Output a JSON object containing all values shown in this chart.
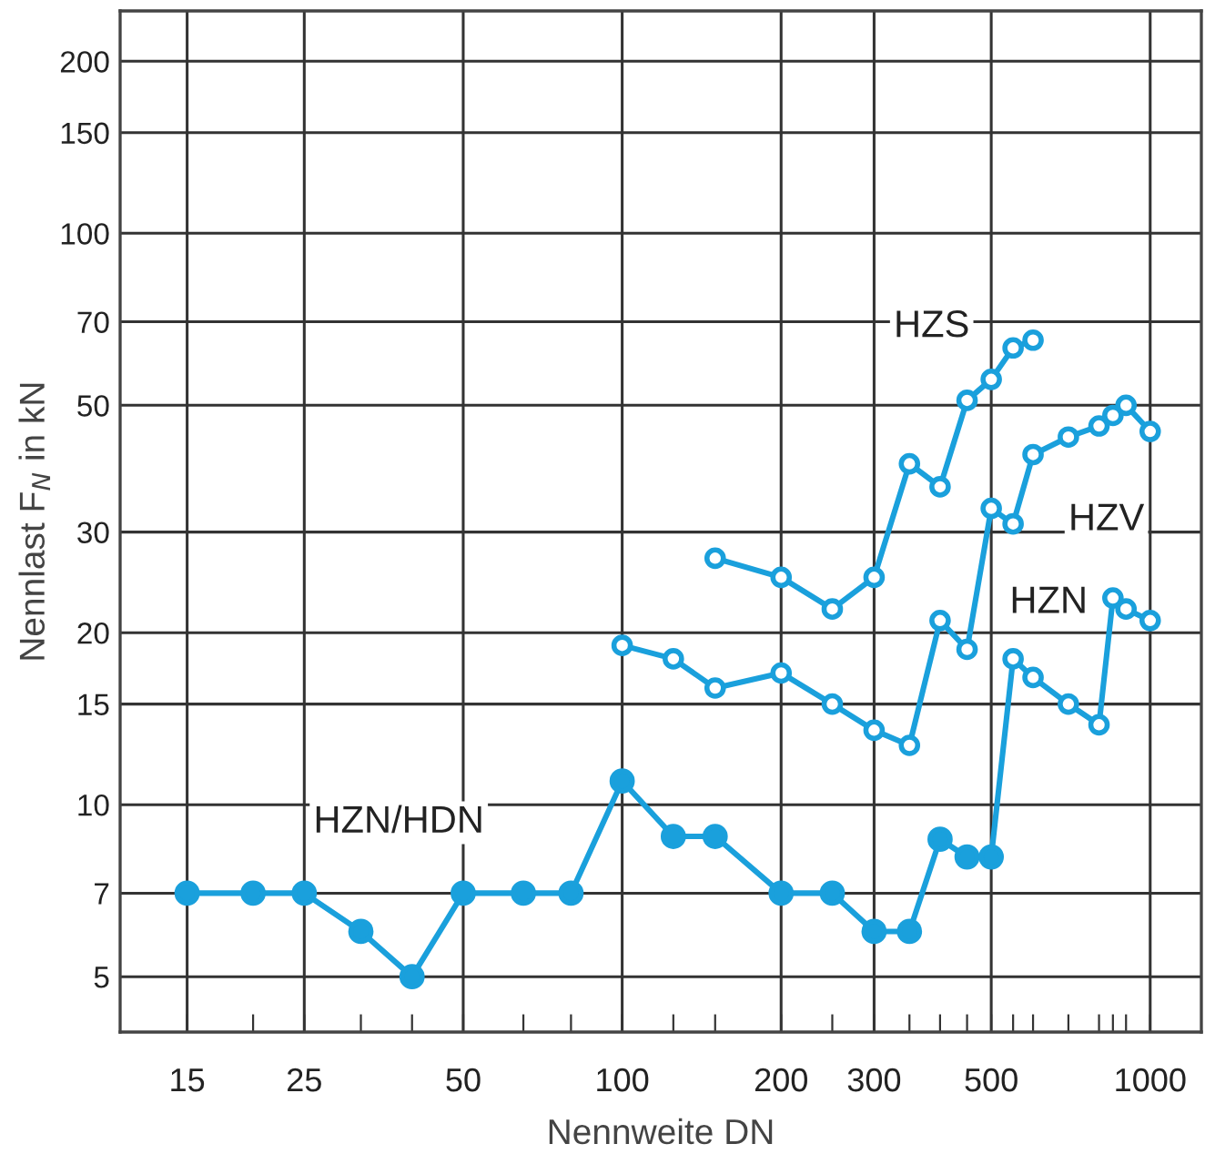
{
  "chart_data": {
    "type": "line",
    "xlabel": "Nennweite DN",
    "ylabel": "Nennlast F$_{N}$ in kN",
    "log": "xy",
    "grid": true,
    "legend": false,
    "marker": "circle",
    "line_style": "solid",
    "xlim": [
      11.2,
      1250
    ],
    "ylim": [
      4,
      245
    ],
    "xticks": [
      15,
      {
        "value": 20,
        "label": null
      },
      25,
      {
        "value": 32,
        "label": null
      },
      {
        "value": 40,
        "label": null
      },
      50,
      {
        "value": 65,
        "label": null
      },
      {
        "value": 80,
        "label": null
      },
      100,
      {
        "value": 125,
        "label": null
      },
      {
        "value": 150,
        "label": null
      },
      200,
      {
        "value": 250,
        "label": null
      },
      300,
      {
        "value": 350,
        "label": null
      },
      {
        "value": 400,
        "label": null
      },
      {
        "value": 450,
        "label": null
      },
      500,
      {
        "value": 550,
        "label": null
      },
      {
        "value": 600,
        "label": null
      },
      {
        "value": 700,
        "label": null
      },
      {
        "value": 800,
        "label": null
      },
      {
        "value": 850,
        "label": null
      },
      {
        "value": 900,
        "label": null
      },
      1000
    ],
    "yticks": [
      5,
      7,
      10,
      15,
      20,
      30,
      50,
      70,
      100,
      150,
      200
    ],
    "series": [
      {
        "name": "HZN/HDN",
        "color": "#1aa0dc",
        "marker": "circle",
        "x": [
          15,
          20,
          25,
          32,
          40,
          50,
          65,
          80,
          100,
          125,
          150,
          200,
          250,
          300,
          350,
          400,
          450,
          500
        ],
        "values": [
          7,
          7,
          7,
          6,
          5,
          7,
          7,
          7,
          11,
          8.8,
          8.8,
          7,
          7,
          6,
          6,
          8.7,
          8.1,
          8.1
        ]
      },
      {
        "name": "HZN",
        "color": "#1aa0dc",
        "x": [
          500,
          550,
          600,
          700,
          800,
          850,
          900,
          1000
        ],
        "values": [
          8.1,
          18,
          16.7,
          15,
          13.8,
          23,
          22,
          21
        ]
      },
      {
        "name": "HZV",
        "color": "#1aa0dc",
        "x": [
          100,
          125,
          150,
          200,
          250,
          300,
          350,
          400,
          450,
          500,
          550,
          600,
          700,
          800,
          850,
          900,
          1000
        ],
        "values": [
          19,
          18,
          16,
          17,
          15,
          13.5,
          12.7,
          21,
          18.7,
          33,
          31,
          41,
          44,
          46,
          48,
          50,
          45
        ]
      },
      {
        "name": "HZS",
        "color": "#1aa0dc",
        "x": [
          150,
          200,
          250,
          300,
          350,
          400,
          450,
          500,
          550,
          600
        ],
        "values": [
          27,
          25,
          22,
          25,
          39.5,
          36,
          51,
          55.5,
          63,
          65
        ]
      }
    ]
  }
}
